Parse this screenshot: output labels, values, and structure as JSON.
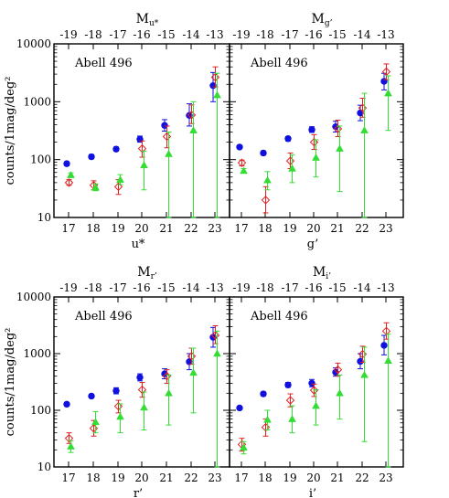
{
  "chart_data": [
    {
      "type": "scatter",
      "ylabel": "counts/1mag/deg²",
      "xlabel": "u*",
      "toplabel_base": "M",
      "toplabel_sub": "u*",
      "annotation": "Abell 496",
      "x_ticks": [
        17,
        18,
        19,
        20,
        21,
        22,
        23
      ],
      "top_ticks": [
        -19,
        -18,
        -17,
        -16,
        -15,
        -14,
        -13
      ],
      "ylim": [
        10,
        10000
      ],
      "y_ticks": [
        10,
        100,
        1000,
        10000
      ],
      "log_y": true,
      "series": [
        {
          "marker": "filled-circle",
          "color": "#1010e0",
          "points": [
            [
              17,
              85,
              78,
              92
            ],
            [
              18,
              112,
              103,
              122
            ],
            [
              19,
              152,
              140,
              165
            ],
            [
              20,
              225,
              200,
              255
            ],
            [
              21,
              390,
              310,
              490
            ],
            [
              22,
              580,
              380,
              920
            ],
            [
              23,
              1900,
              1000,
              3200
            ]
          ]
        },
        {
          "marker": "open-diamond",
          "color": "#e02020",
          "points": [
            [
              17,
              40,
              36,
              45
            ],
            [
              18,
              36,
              30,
              43
            ],
            [
              19,
              34,
              25,
              45
            ],
            [
              20,
              155,
              110,
              210
            ],
            [
              21,
              250,
              160,
              380
            ],
            [
              22,
              590,
              420,
              880
            ],
            [
              23,
              2650,
              1800,
              4000
            ]
          ]
        },
        {
          "marker": "filled-triangle",
          "color": "#33dd33",
          "points": [
            [
              17,
              54,
              50,
              59
            ],
            [
              18,
              33,
              29,
              38
            ],
            [
              19,
              45,
              37,
              55
            ],
            [
              20,
              80,
              30,
              140
            ],
            [
              21,
              125,
              10,
              300
            ],
            [
              22,
              320,
              10,
              1000
            ],
            [
              23,
              1300,
              10,
              3100
            ]
          ]
        }
      ]
    },
    {
      "type": "scatter",
      "ylabel": "",
      "xlabel": "g’",
      "toplabel_base": "M",
      "toplabel_sub": "g’",
      "annotation": "Abell 496",
      "x_ticks": [
        17,
        18,
        19,
        20,
        21,
        22,
        23
      ],
      "top_ticks": [
        -19,
        -18,
        -17,
        -16,
        -15,
        -14,
        -13
      ],
      "ylim": [
        10,
        10000
      ],
      "y_ticks": [
        10,
        100,
        1000,
        10000
      ],
      "log_y": true,
      "series": [
        {
          "marker": "filled-circle",
          "color": "#1010e0",
          "points": [
            [
              17,
              165,
              155,
              176
            ],
            [
              18,
              130,
              120,
              141
            ],
            [
              19,
              230,
              210,
              250
            ],
            [
              20,
              330,
              295,
              370
            ],
            [
              21,
              370,
              300,
              460
            ],
            [
              22,
              640,
              470,
              870
            ],
            [
              23,
              2250,
              1600,
              3100
            ]
          ]
        },
        {
          "marker": "open-diamond",
          "color": "#e02020",
          "points": [
            [
              17,
              88,
              78,
              98
            ],
            [
              18,
              20,
              12,
              34
            ],
            [
              19,
              95,
              70,
              130
            ],
            [
              20,
              200,
              150,
              270
            ],
            [
              21,
              340,
              250,
              480
            ],
            [
              22,
              780,
              540,
              1150
            ],
            [
              23,
              3300,
              2400,
              4500
            ]
          ]
        },
        {
          "marker": "filled-triangle",
          "color": "#33dd33",
          "points": [
            [
              17,
              64,
              59,
              70
            ],
            [
              18,
              44,
              30,
              62
            ],
            [
              19,
              70,
              40,
              120
            ],
            [
              20,
              108,
              50,
              220
            ],
            [
              21,
              155,
              28,
              380
            ],
            [
              22,
              320,
              10,
              1400
            ],
            [
              23,
              1400,
              320,
              2800
            ]
          ]
        }
      ]
    },
    {
      "type": "scatter",
      "ylabel": "counts/1mag/deg²",
      "xlabel": "r’",
      "toplabel_base": "M",
      "toplabel_sub": "r’",
      "annotation": "Abell 496",
      "x_ticks": [
        17,
        18,
        19,
        20,
        21,
        22,
        23
      ],
      "top_ticks": [
        -19,
        -18,
        -17,
        -16,
        -15,
        -14,
        -13
      ],
      "ylim": [
        10,
        10000
      ],
      "y_ticks": [
        10,
        100,
        1000,
        10000
      ],
      "log_y": true,
      "series": [
        {
          "marker": "filled-circle",
          "color": "#1010e0",
          "points": [
            [
              17,
              128,
              120,
              137
            ],
            [
              18,
              178,
              165,
              192
            ],
            [
              19,
              220,
              195,
              250
            ],
            [
              20,
              380,
              330,
              440
            ],
            [
              21,
              440,
              360,
              540
            ],
            [
              22,
              720,
              520,
              1000
            ],
            [
              23,
              1950,
              1300,
              2900
            ]
          ]
        },
        {
          "marker": "open-diamond",
          "color": "#e02020",
          "points": [
            [
              17,
              32,
              26,
              40
            ],
            [
              18,
              48,
              35,
              66
            ],
            [
              19,
              118,
              90,
              150
            ],
            [
              20,
              230,
              170,
              310
            ],
            [
              21,
              400,
              300,
              520
            ],
            [
              22,
              900,
              650,
              1250
            ],
            [
              23,
              2100,
              1500,
              3100
            ]
          ]
        },
        {
          "marker": "filled-triangle",
          "color": "#33dd33",
          "points": [
            [
              17,
              23,
              18,
              29
            ],
            [
              18,
              62,
              40,
              95
            ],
            [
              19,
              77,
              40,
              130
            ],
            [
              20,
              112,
              45,
              210
            ],
            [
              21,
              200,
              55,
              420
            ],
            [
              22,
              460,
              90,
              1250
            ],
            [
              23,
              1000,
              10,
              2500
            ]
          ]
        }
      ]
    },
    {
      "type": "scatter",
      "ylabel": "",
      "xlabel": "i’",
      "toplabel_base": "M",
      "toplabel_sub": "i’",
      "annotation": "Abell 496",
      "x_ticks": [
        17,
        18,
        19,
        20,
        21,
        22,
        23
      ],
      "top_ticks": [
        -19,
        -18,
        -17,
        -16,
        -15,
        -14,
        -13
      ],
      "ylim": [
        10,
        10000
      ],
      "y_ticks": [
        10,
        100,
        1000,
        10000
      ],
      "log_y": true,
      "series": [
        {
          "marker": "filled-circle",
          "color": "#1010e0",
          "points": [
            [
              17,
              110,
              103,
              118
            ],
            [
              18,
              195,
              180,
              211
            ],
            [
              19,
              280,
              255,
              310
            ],
            [
              20,
              300,
              260,
              350
            ],
            [
              21,
              470,
              400,
              560
            ],
            [
              22,
              730,
              540,
              1000
            ],
            [
              23,
              1400,
              950,
              2100
            ]
          ]
        },
        {
          "marker": "open-diamond",
          "color": "#e02020",
          "points": [
            [
              17,
              25,
              19,
              32
            ],
            [
              18,
              50,
              35,
              70
            ],
            [
              19,
              150,
              115,
              195
            ],
            [
              20,
              225,
              175,
              290
            ],
            [
              21,
              520,
              400,
              680
            ],
            [
              22,
              980,
              700,
              1350
            ],
            [
              23,
              2500,
              1800,
              3500
            ]
          ]
        },
        {
          "marker": "filled-triangle",
          "color": "#33dd33",
          "points": [
            [
              17,
              22,
              17,
              28
            ],
            [
              18,
              68,
              45,
              100
            ],
            [
              19,
              70,
              40,
              120
            ],
            [
              20,
              120,
              55,
              230
            ],
            [
              21,
              200,
              70,
              420
            ],
            [
              22,
              420,
              28,
              1300
            ],
            [
              23,
              750,
              10,
              2200
            ]
          ]
        }
      ]
    }
  ]
}
